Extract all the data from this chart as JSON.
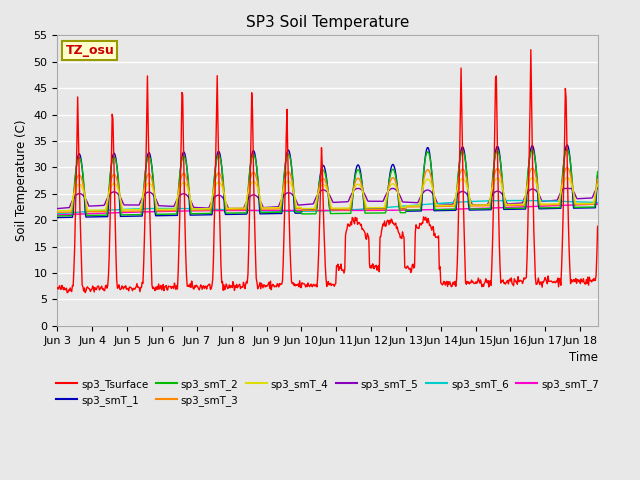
{
  "title": "SP3 Soil Temperature",
  "ylabel": "Soil Temperature (C)",
  "xlabel": "Time",
  "annotation": "TZ_osu",
  "ylim": [
    0,
    55
  ],
  "background_color": "#e8e8e8",
  "grid_color": "#ffffff",
  "series_colors": {
    "sp3_Tsurface": "#ff0000",
    "sp3_smT_1": "#0000bb",
    "sp3_smT_2": "#00bb00",
    "sp3_smT_3": "#ff8800",
    "sp3_smT_4": "#dddd00",
    "sp3_smT_5": "#8800bb",
    "sp3_smT_6": "#00cccc",
    "sp3_smT_7": "#ff00cc"
  },
  "x_tick_labels": [
    "Jun 3",
    "Jun 4",
    "Jun 5",
    "Jun 6",
    "Jun 7",
    "Jun 8",
    "Jun 9",
    "Jun 10",
    "Jun 11",
    "Jun 12",
    "Jun 13",
    "Jun 14",
    "Jun 15",
    "Jun 16",
    "Jun 17",
    "Jun 18"
  ],
  "yticks": [
    0,
    5,
    10,
    15,
    20,
    25,
    30,
    35,
    40,
    45,
    50,
    55
  ]
}
